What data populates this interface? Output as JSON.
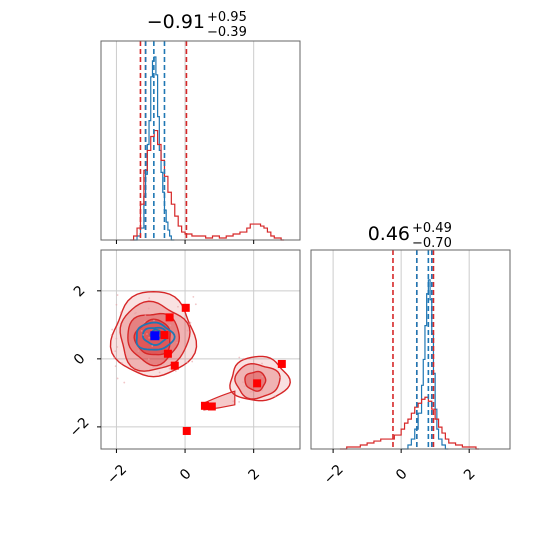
{
  "colors": {
    "blue": "#1f77b4",
    "red": "#d62728",
    "marker_red": "#ff0000",
    "marker_blue": "#0000ff",
    "grid": "#cccccc",
    "axis": "#666666"
  },
  "chart_data": [
    {
      "type": "histogram",
      "panel": "top-left",
      "title": {
        "value": "−0.91",
        "plus": "+0.95",
        "minus": "−0.39"
      },
      "xlim": [
        -2.45,
        3.35
      ],
      "grid": true,
      "quantile_lines": {
        "red": [
          -1.3,
          -1.15,
          0.04
        ],
        "blue": [
          -1.15,
          -0.91,
          -0.6
        ]
      },
      "series": [
        {
          "color": "blue",
          "bins": [
            [
              -1.5,
              0.0
            ],
            [
              -1.4,
              0.02
            ],
            [
              -1.3,
              0.06
            ],
            [
              -1.2,
              0.22
            ],
            [
              -1.15,
              0.33
            ],
            [
              -1.1,
              0.48
            ],
            [
              -1.05,
              0.6
            ],
            [
              -1.0,
              0.82
            ],
            [
              -0.95,
              0.9
            ],
            [
              -0.9,
              0.92
            ],
            [
              -0.85,
              0.83
            ],
            [
              -0.8,
              0.62
            ],
            [
              -0.75,
              0.45
            ],
            [
              -0.7,
              0.34
            ],
            [
              -0.65,
              0.24
            ],
            [
              -0.6,
              0.15
            ],
            [
              -0.55,
              0.09
            ],
            [
              -0.5,
              0.05
            ],
            [
              -0.45,
              0.02
            ],
            [
              -0.4,
              0.0
            ]
          ]
        },
        {
          "color": "red",
          "bins": [
            [
              -1.6,
              0.0
            ],
            [
              -1.5,
              0.02
            ],
            [
              -1.4,
              0.06
            ],
            [
              -1.3,
              0.18
            ],
            [
              -1.2,
              0.35
            ],
            [
              -1.1,
              0.45
            ],
            [
              -1.0,
              0.52
            ],
            [
              -0.9,
              0.55
            ],
            [
              -0.8,
              0.48
            ],
            [
              -0.7,
              0.4
            ],
            [
              -0.6,
              0.32
            ],
            [
              -0.5,
              0.24
            ],
            [
              -0.4,
              0.18
            ],
            [
              -0.3,
              0.12
            ],
            [
              -0.2,
              0.07
            ],
            [
              -0.1,
              0.04
            ],
            [
              0.0,
              0.03
            ],
            [
              0.2,
              0.02
            ],
            [
              0.4,
              0.02
            ],
            [
              0.6,
              0.01
            ],
            [
              0.8,
              0.02
            ],
            [
              1.0,
              0.01
            ],
            [
              1.2,
              0.02
            ],
            [
              1.4,
              0.03
            ],
            [
              1.6,
              0.04
            ],
            [
              1.8,
              0.06
            ],
            [
              1.9,
              0.08
            ],
            [
              2.0,
              0.08
            ],
            [
              2.1,
              0.08
            ],
            [
              2.2,
              0.07
            ],
            [
              2.3,
              0.06
            ],
            [
              2.4,
              0.04
            ],
            [
              2.5,
              0.02
            ],
            [
              2.6,
              0.01
            ],
            [
              2.8,
              0.0
            ]
          ]
        }
      ]
    },
    {
      "type": "histogram",
      "panel": "bottom-right",
      "title": {
        "value": "0.46",
        "plus": "+0.49",
        "minus": "−0.70"
      },
      "xlim": [
        -2.65,
        3.2
      ],
      "xticks": [
        -2,
        0,
        2
      ],
      "xtick_labels": [
        "−2",
        "0",
        "2"
      ],
      "grid": true,
      "quantile_lines": {
        "red": [
          -0.24,
          0.46,
          0.95
        ],
        "blue": [
          0.46,
          0.8,
          0.9
        ]
      },
      "series": [
        {
          "color": "blue",
          "bins": [
            [
              0.0,
              0.0
            ],
            [
              0.2,
              0.02
            ],
            [
              0.3,
              0.05
            ],
            [
              0.4,
              0.1
            ],
            [
              0.5,
              0.18
            ],
            [
              0.6,
              0.32
            ],
            [
              0.65,
              0.45
            ],
            [
              0.7,
              0.62
            ],
            [
              0.75,
              0.78
            ],
            [
              0.8,
              0.85
            ],
            [
              0.85,
              0.75
            ],
            [
              0.9,
              0.58
            ],
            [
              0.95,
              0.38
            ],
            [
              1.0,
              0.2
            ],
            [
              1.05,
              0.1
            ],
            [
              1.1,
              0.05
            ],
            [
              1.2,
              0.02
            ],
            [
              1.3,
              0.0
            ]
          ]
        },
        {
          "color": "red",
          "bins": [
            [
              -1.8,
              0.0
            ],
            [
              -1.6,
              0.01
            ],
            [
              -1.4,
              0.01
            ],
            [
              -1.2,
              0.02
            ],
            [
              -1.0,
              0.03
            ],
            [
              -0.8,
              0.04
            ],
            [
              -0.6,
              0.05
            ],
            [
              -0.4,
              0.05
            ],
            [
              -0.2,
              0.07
            ],
            [
              0.0,
              0.1
            ],
            [
              0.1,
              0.13
            ],
            [
              0.2,
              0.15
            ],
            [
              0.3,
              0.18
            ],
            [
              0.4,
              0.21
            ],
            [
              0.5,
              0.23
            ],
            [
              0.6,
              0.25
            ],
            [
              0.7,
              0.26
            ],
            [
              0.8,
              0.24
            ],
            [
              0.9,
              0.2
            ],
            [
              1.0,
              0.15
            ],
            [
              1.1,
              0.11
            ],
            [
              1.2,
              0.08
            ],
            [
              1.3,
              0.05
            ],
            [
              1.4,
              0.03
            ],
            [
              1.6,
              0.02
            ],
            [
              1.8,
              0.01
            ],
            [
              2.0,
              0.01
            ],
            [
              2.2,
              0.0
            ]
          ]
        }
      ]
    },
    {
      "type": "scatter",
      "subtype": "contour",
      "panel": "bottom-left",
      "xlim": [
        -2.45,
        3.35
      ],
      "ylim": [
        -2.65,
        3.2
      ],
      "xticks": [
        -2,
        0,
        2
      ],
      "xtick_labels": [
        "−2",
        "0",
        "2"
      ],
      "yticks": [
        -2,
        0,
        2
      ],
      "ytick_labels": [
        "−2",
        "0",
        "2"
      ],
      "grid": true,
      "red_contours": [
        {
          "cx": -0.92,
          "cy": 0.7,
          "rx": 1.2,
          "ry": 1.25,
          "opacity": 0.25
        },
        {
          "cx": -0.92,
          "cy": 0.65,
          "rx": 1.0,
          "ry": 1.0,
          "opacity": 0.45
        },
        {
          "cx": -0.92,
          "cy": 0.62,
          "rx": 0.75,
          "ry": 0.75,
          "opacity": 0.65
        },
        {
          "cx": -0.92,
          "cy": 0.62,
          "rx": 0.52,
          "ry": 0.52,
          "opacity": 0.85
        },
        {
          "cx": 2.15,
          "cy": -0.6,
          "rx": 0.85,
          "ry": 0.65,
          "opacity": 0.25
        },
        {
          "cx": 2.1,
          "cy": -0.65,
          "rx": 0.65,
          "ry": 0.5,
          "opacity": 0.45
        },
        {
          "cx": 2.05,
          "cy": -0.65,
          "rx": 0.3,
          "ry": 0.28,
          "opacity": 0.7
        }
      ],
      "blue_contours": [
        {
          "cx": -0.9,
          "cy": 0.65,
          "rx": 0.55,
          "ry": 0.4
        },
        {
          "cx": -0.88,
          "cy": 0.68,
          "rx": 0.35,
          "ry": 0.25
        },
        {
          "cx": -0.85,
          "cy": 0.72,
          "rx": 0.15,
          "ry": 0.13
        }
      ],
      "red_points": [
        [
          0.02,
          1.5
        ],
        [
          -0.45,
          1.22
        ],
        [
          -0.5,
          0.15
        ],
        [
          -0.3,
          -0.2
        ],
        [
          -0.6,
          0.7
        ],
        [
          2.82,
          -0.15
        ],
        [
          2.1,
          -0.72
        ],
        [
          0.58,
          -1.38
        ],
        [
          0.78,
          -1.4
        ],
        [
          0.05,
          -2.12
        ]
      ],
      "blue_points": [
        [
          -0.88,
          0.68
        ]
      ]
    }
  ]
}
